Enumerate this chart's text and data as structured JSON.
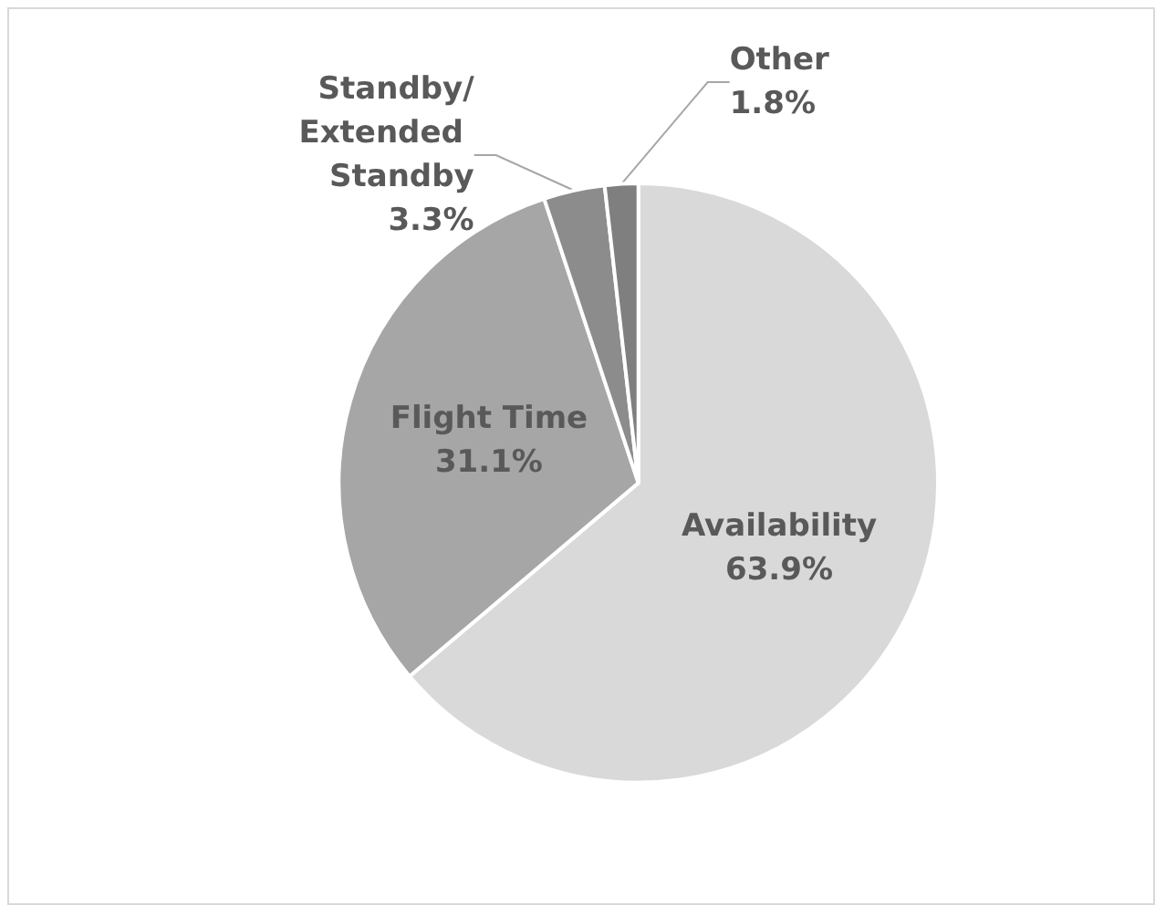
{
  "chart_data": {
    "type": "pie",
    "categories": [
      "Availability",
      "Flight Time",
      "Standby/Extended Standby",
      "Other"
    ],
    "values": [
      63.9,
      31.1,
      3.3,
      1.8
    ],
    "colors": [
      "#d9d9d9",
      "#a6a6a6",
      "#8c8c8c",
      "#7f7f7f"
    ],
    "value_labels": [
      "63.9%",
      "31.1%",
      "3.3%",
      "1.8%"
    ],
    "legend": false
  }
}
